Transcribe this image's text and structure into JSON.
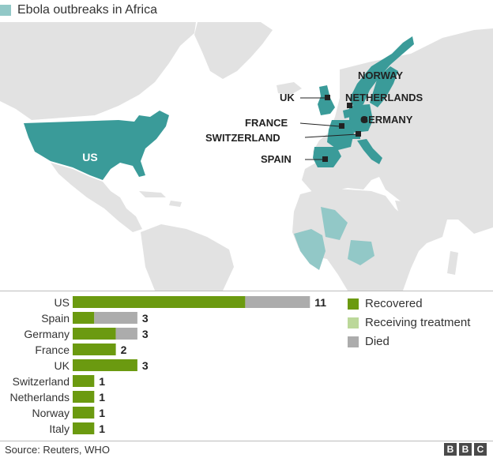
{
  "title": "Ebola outbreaks in Africa",
  "map": {
    "labels": {
      "us": "US",
      "norway": "NORWAY",
      "uk": "UK",
      "netherlands": "NETHERLANDS",
      "france": "FRANCE",
      "germany": "GERMANY",
      "switzerland": "SWITZERLAND",
      "spain": "SPAIN"
    },
    "colors": {
      "land": "#e2e2e2",
      "affected": "#3a9b99",
      "africa_outbreak": "#92c8c7",
      "sea": "#ffffff"
    }
  },
  "legend": [
    {
      "label": "Recovered",
      "color": "#6b9a10"
    },
    {
      "label": "Receiving treatment",
      "color": "#bcd89a"
    },
    {
      "label": "Died",
      "color": "#acacac"
    }
  ],
  "chart_data": {
    "type": "bar",
    "orientation": "horizontal",
    "stacked": true,
    "categories": [
      "US",
      "Spain",
      "Germany",
      "France",
      "UK",
      "Switzerland",
      "Netherlands",
      "Norway",
      "Italy"
    ],
    "series": [
      {
        "name": "Recovered",
        "values": [
          8,
          1,
          2,
          2,
          3,
          1,
          1,
          1,
          1
        ],
        "color": "#6b9a10"
      },
      {
        "name": "Receiving treatment",
        "values": [
          0,
          0,
          0,
          0,
          0,
          0,
          0,
          0,
          0
        ],
        "color": "#bcd89a"
      },
      {
        "name": "Died",
        "values": [
          3,
          2,
          1,
          0,
          0,
          0,
          0,
          0,
          0
        ],
        "color": "#acacac"
      }
    ],
    "totals": [
      "11",
      "3",
      "3",
      "2",
      "3",
      "1",
      "1",
      "1",
      "1"
    ],
    "xlim": [
      0,
      11
    ],
    "grid": false,
    "legend_position": "right"
  },
  "source": "Source: Reuters, WHO",
  "brand": [
    "B",
    "B",
    "C"
  ]
}
